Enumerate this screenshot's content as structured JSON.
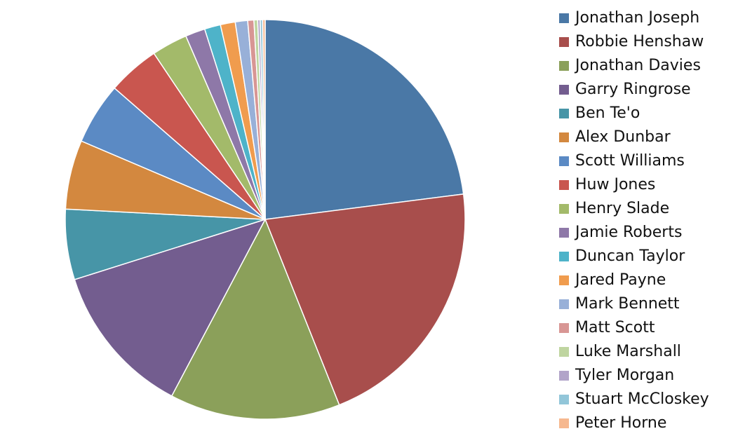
{
  "chart_data": {
    "type": "pie",
    "categories": [
      "Jonathan Joseph",
      "Robbie Henshaw",
      "Jonathan Davies",
      "Garry Ringrose",
      "Ben Te'o",
      "Alex Dunbar",
      "Scott Williams",
      "Huw Jones",
      "Henry Slade",
      "Jamie Roberts",
      "Duncan Taylor",
      "Jared Payne",
      "Mark Bennett",
      "Matt Scott",
      "Luke Marshall",
      "Tyler Morgan",
      "Stuart McCloskey",
      "Peter Horne"
    ],
    "values": [
      23,
      21,
      13.8,
      12.4,
      5.7,
      5.6,
      5,
      4.2,
      2.9,
      1.6,
      1.3,
      1.2,
      1,
      0.5,
      0.3,
      0.2,
      0.2,
      0.2
    ],
    "colors": [
      "#4a78a6",
      "#a84e4c",
      "#8ba05a",
      "#735d8f",
      "#4795a7",
      "#d3883f",
      "#5b8ac4",
      "#c9564f",
      "#a3ba6a",
      "#8e78a8",
      "#4eb3c9",
      "#f09c4e",
      "#98b0d8",
      "#d89694",
      "#bfd5a0",
      "#b2a4c9",
      "#92c6d9",
      "#f6b88f"
    ]
  }
}
